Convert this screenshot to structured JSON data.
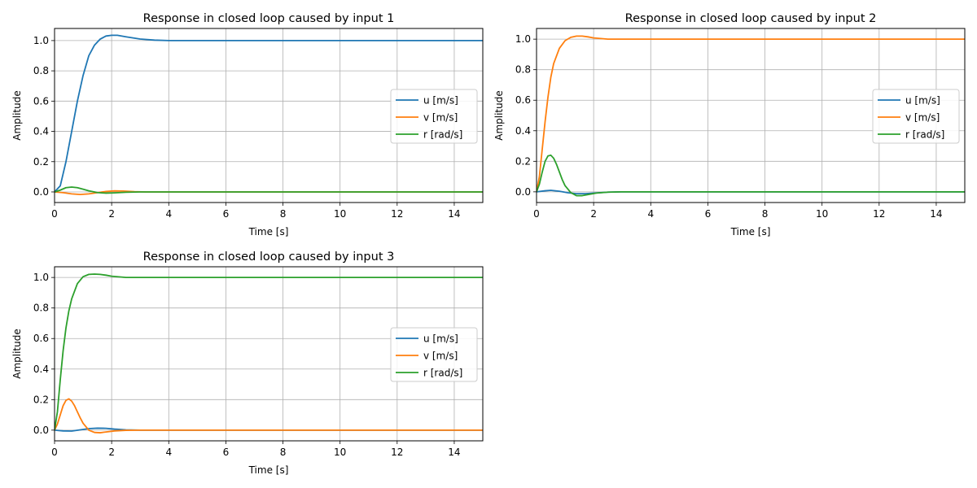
{
  "chart_data": [
    {
      "type": "line",
      "title": "Response in closed loop caused by input 1",
      "xlabel": "Time [s]",
      "ylabel": "Amplitude",
      "xlim": [
        0,
        15
      ],
      "ylim": [
        -0.07,
        1.08
      ],
      "xticks": [
        0,
        2,
        4,
        6,
        8,
        10,
        12,
        14
      ],
      "yticks": [
        0.0,
        0.2,
        0.4,
        0.6,
        0.8,
        1.0
      ],
      "grid": true,
      "legend_position": "center-right",
      "series": [
        {
          "name": "u [m/s]",
          "color": "#1f77b4",
          "x": [
            0,
            0.2,
            0.4,
            0.6,
            0.8,
            1.0,
            1.2,
            1.4,
            1.6,
            1.8,
            2.0,
            2.2,
            2.5,
            3.0,
            3.5,
            4.0,
            5.0,
            15.0
          ],
          "y": [
            0,
            0.04,
            0.2,
            0.4,
            0.6,
            0.77,
            0.9,
            0.97,
            1.01,
            1.03,
            1.035,
            1.035,
            1.025,
            1.01,
            1.003,
            1.0,
            1.0,
            1.0
          ]
        },
        {
          "name": "v [m/s]",
          "color": "#ff7f0e",
          "x": [
            0,
            0.3,
            0.6,
            0.9,
            1.2,
            1.5,
            1.8,
            2.1,
            2.4,
            2.8,
            3.2,
            15.0
          ],
          "y": [
            0,
            -0.005,
            -0.013,
            -0.017,
            -0.013,
            -0.005,
            0.003,
            0.007,
            0.006,
            0.002,
            0,
            0
          ]
        },
        {
          "name": "r [rad/s]",
          "color": "#2ca02c",
          "x": [
            0,
            0.2,
            0.4,
            0.6,
            0.8,
            1.0,
            1.2,
            1.5,
            1.8,
            2.1,
            2.5,
            3.0,
            15.0
          ],
          "y": [
            0,
            0.012,
            0.028,
            0.032,
            0.028,
            0.018,
            0.007,
            -0.004,
            -0.008,
            -0.006,
            -0.002,
            0,
            0
          ]
        }
      ]
    },
    {
      "type": "line",
      "title": "Response in closed loop caused by input 2",
      "xlabel": "Time [s]",
      "ylabel": "Amplitude",
      "xlim": [
        0,
        15
      ],
      "ylim": [
        -0.07,
        1.07
      ],
      "xticks": [
        0,
        2,
        4,
        6,
        8,
        10,
        12,
        14
      ],
      "yticks": [
        0.0,
        0.2,
        0.4,
        0.6,
        0.8,
        1.0
      ],
      "grid": true,
      "legend_position": "center-right",
      "series": [
        {
          "name": "u [m/s]",
          "color": "#1f77b4",
          "x": [
            0,
            0.3,
            0.5,
            0.8,
            1.1,
            1.4,
            1.7,
            2.0,
            2.5,
            3.0,
            15.0
          ],
          "y": [
            0,
            0.007,
            0.01,
            0.004,
            -0.006,
            -0.012,
            -0.012,
            -0.008,
            -0.002,
            0,
            0
          ]
        },
        {
          "name": "v [m/s]",
          "color": "#ff7f0e",
          "x": [
            0,
            0.1,
            0.2,
            0.3,
            0.4,
            0.5,
            0.6,
            0.8,
            1.0,
            1.2,
            1.4,
            1.6,
            1.8,
            2.0,
            2.5,
            3.0,
            15.0
          ],
          "y": [
            0,
            0.1,
            0.28,
            0.46,
            0.62,
            0.75,
            0.84,
            0.94,
            0.99,
            1.012,
            1.02,
            1.02,
            1.015,
            1.008,
            1.0,
            1.0,
            1.0
          ]
        },
        {
          "name": "r [rad/s]",
          "color": "#2ca02c",
          "x": [
            0,
            0.1,
            0.2,
            0.3,
            0.4,
            0.5,
            0.6,
            0.7,
            0.8,
            0.9,
            1.0,
            1.2,
            1.4,
            1.6,
            1.8,
            2.1,
            2.5,
            3.0,
            15.0
          ],
          "y": [
            0,
            0.05,
            0.13,
            0.2,
            0.235,
            0.24,
            0.22,
            0.18,
            0.13,
            0.08,
            0.04,
            -0.005,
            -0.025,
            -0.025,
            -0.018,
            -0.008,
            -0.002,
            0,
            0
          ]
        }
      ]
    },
    {
      "type": "line",
      "title": "Response in closed loop caused by input 3",
      "xlabel": "Time [s]",
      "ylabel": "Amplitude",
      "xlim": [
        0,
        15
      ],
      "ylim": [
        -0.07,
        1.07
      ],
      "xticks": [
        0,
        2,
        4,
        6,
        8,
        10,
        12,
        14
      ],
      "yticks": [
        0.0,
        0.2,
        0.4,
        0.6,
        0.8,
        1.0
      ],
      "grid": true,
      "legend_position": "center-right",
      "series": [
        {
          "name": "u [m/s]",
          "color": "#1f77b4",
          "x": [
            0,
            0.3,
            0.6,
            0.9,
            1.2,
            1.5,
            1.8,
            2.1,
            2.5,
            3.0,
            15.0
          ],
          "y": [
            0,
            -0.005,
            -0.006,
            0.002,
            0.01,
            0.013,
            0.012,
            0.007,
            0.002,
            0,
            0
          ]
        },
        {
          "name": "v [m/s]",
          "color": "#ff7f0e",
          "x": [
            0,
            0.1,
            0.2,
            0.3,
            0.4,
            0.5,
            0.6,
            0.7,
            0.8,
            0.9,
            1.0,
            1.2,
            1.4,
            1.6,
            1.8,
            2.1,
            2.5,
            3.0,
            15.0
          ],
          "y": [
            0,
            0.04,
            0.1,
            0.16,
            0.195,
            0.205,
            0.19,
            0.16,
            0.12,
            0.08,
            0.045,
            0,
            -0.015,
            -0.017,
            -0.012,
            -0.005,
            -0.001,
            0,
            0
          ]
        },
        {
          "name": "r [rad/s]",
          "color": "#2ca02c",
          "x": [
            0,
            0.1,
            0.2,
            0.3,
            0.4,
            0.5,
            0.6,
            0.8,
            1.0,
            1.2,
            1.4,
            1.6,
            1.8,
            2.0,
            2.5,
            3.0,
            15.0
          ],
          "y": [
            0,
            0.12,
            0.33,
            0.52,
            0.67,
            0.78,
            0.86,
            0.96,
            1.005,
            1.02,
            1.022,
            1.02,
            1.015,
            1.008,
            1.0,
            1.0,
            1.0
          ]
        }
      ]
    }
  ]
}
